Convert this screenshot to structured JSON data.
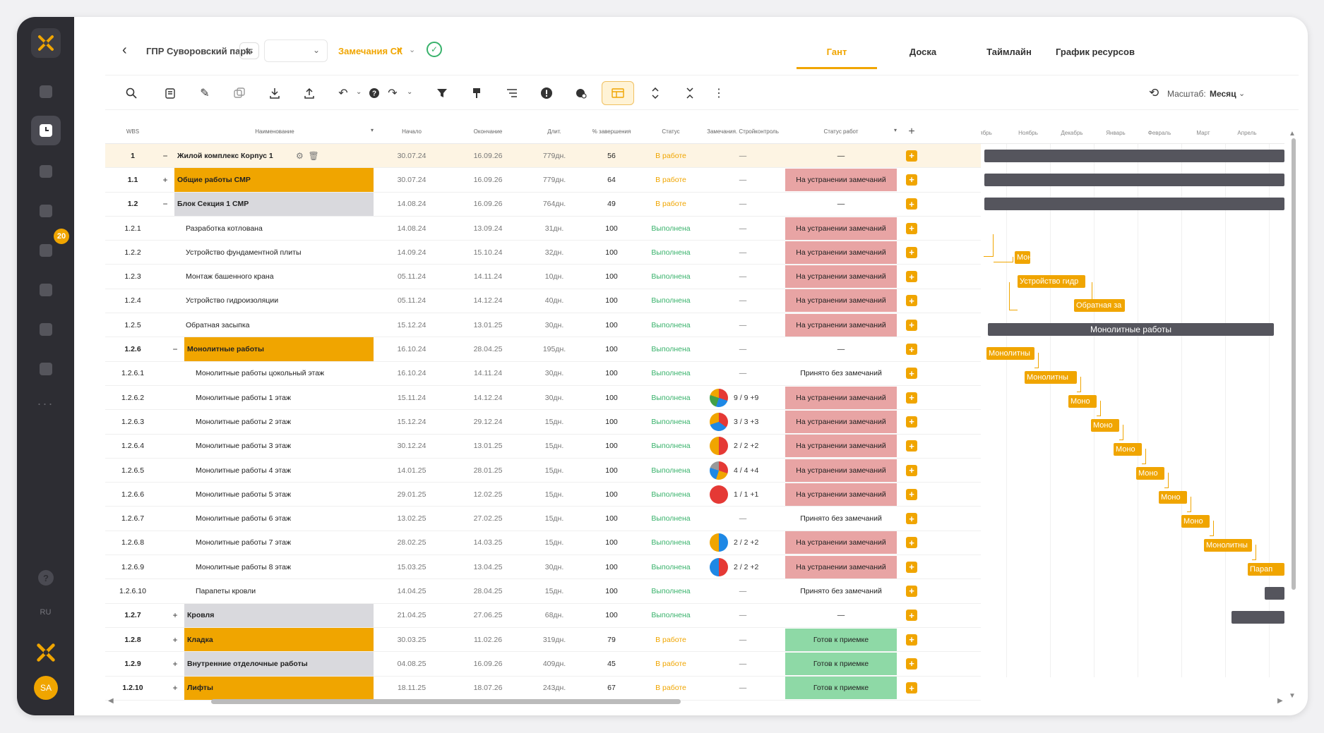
{
  "sidebar": {
    "badge_count": "20",
    "dots": "···",
    "lang": "RU",
    "help": "?",
    "avatar": "SA"
  },
  "topbar": {
    "project_title": "ГПР Суворовский парк",
    "filter_chip": "Замечания СК",
    "tabs": [
      "Гант",
      "Доска",
      "Таймлайн",
      "График ресурсов"
    ],
    "active_tab": "Гант"
  },
  "toolbar": {
    "scale_label": "Масштаб:",
    "scale_value": "Месяц"
  },
  "table": {
    "headers": {
      "wbs": "WBS",
      "name": "Наименование",
      "start": "Начало",
      "end": "Окончание",
      "duration": "Длит.",
      "percent": "% завершения",
      "status": "Статус",
      "remarks": "Замечания. Стройконтроль",
      "work_status": "Статус работ"
    },
    "rows": [
      {
        "wbs": "1",
        "name": "Жилой комплекс Корпус 1",
        "start": "30.07.24",
        "end": "16.09.26",
        "dur": "779дн.",
        "pct": "56",
        "status": "В работе",
        "remarks": "—",
        "wstatus": "—"
      },
      {
        "wbs": "1.1",
        "name": "Общие работы СМР",
        "start": "30.07.24",
        "end": "16.09.26",
        "dur": "779дн.",
        "pct": "64",
        "status": "В работе",
        "remarks": "—",
        "wstatus": "На устранении замечаний"
      },
      {
        "wbs": "1.2",
        "name": "Блок Секция 1 СМР",
        "start": "14.08.24",
        "end": "16.09.26",
        "dur": "764дн.",
        "pct": "49",
        "status": "В работе",
        "remarks": "—",
        "wstatus": "—"
      },
      {
        "wbs": "1.2.1",
        "name": "Разработка котлована",
        "start": "14.08.24",
        "end": "13.09.24",
        "dur": "31дн.",
        "pct": "100",
        "status": "Выполнена",
        "remarks": "—",
        "wstatus": "На устранении замечаний"
      },
      {
        "wbs": "1.2.2",
        "name": "Устройство фундаментной плиты",
        "start": "14.09.24",
        "end": "15.10.24",
        "dur": "32дн.",
        "pct": "100",
        "status": "Выполнена",
        "remarks": "—",
        "wstatus": "На устранении замечаний"
      },
      {
        "wbs": "1.2.3",
        "name": "Монтаж башенного крана",
        "start": "05.11.24",
        "end": "14.11.24",
        "dur": "10дн.",
        "pct": "100",
        "status": "Выполнена",
        "remarks": "—",
        "wstatus": "На устранении замечаний"
      },
      {
        "wbs": "1.2.4",
        "name": "Устройство гидроизоляции",
        "start": "05.11.24",
        "end": "14.12.24",
        "dur": "40дн.",
        "pct": "100",
        "status": "Выполнена",
        "remarks": "—",
        "wstatus": "На устранении замечаний"
      },
      {
        "wbs": "1.2.5",
        "name": "Обратная засыпка",
        "start": "15.12.24",
        "end": "13.01.25",
        "dur": "30дн.",
        "pct": "100",
        "status": "Выполнена",
        "remarks": "—",
        "wstatus": "На устранении замечаний"
      },
      {
        "wbs": "1.2.6",
        "name": "Монолитные работы",
        "start": "16.10.24",
        "end": "28.04.25",
        "dur": "195дн.",
        "pct": "100",
        "status": "Выполнена",
        "remarks": "—",
        "wstatus": "—"
      },
      {
        "wbs": "1.2.6.1",
        "name": "Монолитные работы цокольный этаж",
        "start": "16.10.24",
        "end": "14.11.24",
        "dur": "30дн.",
        "pct": "100",
        "status": "Выполнена",
        "remarks": "—",
        "wstatus": "Принято без замечаний"
      },
      {
        "wbs": "1.2.6.2",
        "name": "Монолитные работы 1 этаж",
        "start": "15.11.24",
        "end": "14.12.24",
        "dur": "30дн.",
        "pct": "100",
        "status": "Выполнена",
        "remarks": "9 / 9 +9",
        "wstatus": "На устранении замечаний"
      },
      {
        "wbs": "1.2.6.3",
        "name": "Монолитные работы 2 этаж",
        "start": "15.12.24",
        "end": "29.12.24",
        "dur": "15дн.",
        "pct": "100",
        "status": "Выполнена",
        "remarks": "3 / 3 +3",
        "wstatus": "На устранении замечаний"
      },
      {
        "wbs": "1.2.6.4",
        "name": "Монолитные работы 3 этаж",
        "start": "30.12.24",
        "end": "13.01.25",
        "dur": "15дн.",
        "pct": "100",
        "status": "Выполнена",
        "remarks": "2 / 2 +2",
        "wstatus": "На устранении замечаний"
      },
      {
        "wbs": "1.2.6.5",
        "name": "Монолитные работы 4 этаж",
        "start": "14.01.25",
        "end": "28.01.25",
        "dur": "15дн.",
        "pct": "100",
        "status": "Выполнена",
        "remarks": "4 / 4 +4",
        "wstatus": "На устранении замечаний"
      },
      {
        "wbs": "1.2.6.6",
        "name": "Монолитные работы 5 этаж",
        "start": "29.01.25",
        "end": "12.02.25",
        "dur": "15дн.",
        "pct": "100",
        "status": "Выполнена",
        "remarks": "1 / 1 +1",
        "wstatus": "На устранении замечаний"
      },
      {
        "wbs": "1.2.6.7",
        "name": "Монолитные работы 6 этаж",
        "start": "13.02.25",
        "end": "27.02.25",
        "dur": "15дн.",
        "pct": "100",
        "status": "Выполнена",
        "remarks": "—",
        "wstatus": "Принято без замечаний"
      },
      {
        "wbs": "1.2.6.8",
        "name": "Монолитные работы 7 этаж",
        "start": "28.02.25",
        "end": "14.03.25",
        "dur": "15дн.",
        "pct": "100",
        "status": "Выполнена",
        "remarks": "2 / 2 +2",
        "wstatus": "На устранении замечаний"
      },
      {
        "wbs": "1.2.6.9",
        "name": "Монолитные работы 8 этаж",
        "start": "15.03.25",
        "end": "13.04.25",
        "dur": "30дн.",
        "pct": "100",
        "status": "Выполнена",
        "remarks": "2 / 2 +2",
        "wstatus": "На устранении замечаний"
      },
      {
        "wbs": "1.2.6.10",
        "name": "Парапеты кровли",
        "start": "14.04.25",
        "end": "28.04.25",
        "dur": "15дн.",
        "pct": "100",
        "status": "Выполнена",
        "remarks": "—",
        "wstatus": "Принято без замечаний"
      },
      {
        "wbs": "1.2.7",
        "name": "Кровля",
        "start": "21.04.25",
        "end": "27.06.25",
        "dur": "68дн.",
        "pct": "100",
        "status": "Выполнена",
        "remarks": "—",
        "wstatus": "—"
      },
      {
        "wbs": "1.2.8",
        "name": "Кладка",
        "start": "30.03.25",
        "end": "11.02.26",
        "dur": "319дн.",
        "pct": "79",
        "status": "В работе",
        "remarks": "—",
        "wstatus": "Готов к приемке"
      },
      {
        "wbs": "1.2.9",
        "name": "Внутренние отделочные работы",
        "start": "04.08.25",
        "end": "16.09.26",
        "dur": "409дн.",
        "pct": "45",
        "status": "В работе",
        "remarks": "—",
        "wstatus": "Готов к приемке"
      },
      {
        "wbs": "1.2.10",
        "name": "Лифты",
        "start": "18.11.25",
        "end": "18.07.26",
        "dur": "243дн.",
        "pct": "67",
        "status": "В работе",
        "remarks": "—",
        "wstatus": "Готов к приемке"
      }
    ]
  },
  "gantt": {
    "months": [
      "ябрь",
      "Ноябрь",
      "Декабрь",
      "Январь",
      "Февраль",
      "Март",
      "Апрель"
    ],
    "bar_labels": {
      "mon": "Мон",
      "hydro": "Устройство гидр",
      "backfill": "Обратная за",
      "monolith_summary": "Монолитные работы",
      "m1": "Монолитны",
      "m2": "Монолитны",
      "m3": "Моно",
      "m4": "Моно",
      "m5": "Моно",
      "m6": "Моно",
      "m7": "Моно",
      "m8": "Моно",
      "m9": "Монолитны",
      "parapet": "Парап"
    }
  },
  "colors": {
    "accent": "#f0a500",
    "done": "#38b26b",
    "remark_red": "#e8a4a4",
    "ready_green": "#8ed9a6",
    "sidebar": "#2d2d33"
  }
}
